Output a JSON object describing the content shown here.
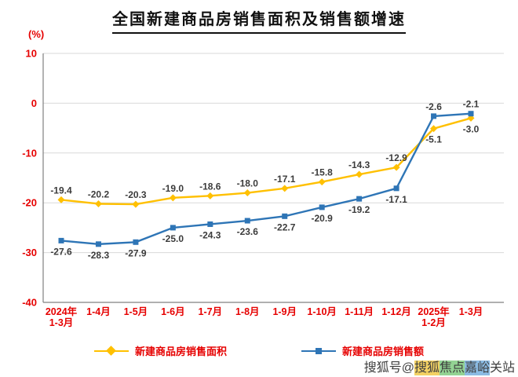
{
  "chart_data": {
    "type": "line",
    "title": "全国新建商品房销售面积及销售额增速",
    "ylabel": "(%)",
    "xlabel": "",
    "ylim": [
      -40,
      10
    ],
    "yticks": [
      10,
      0,
      -10,
      -20,
      -30,
      -40
    ],
    "grid": true,
    "legend_position": "bottom",
    "categories": [
      "2024年\n1-3月",
      "1-4月",
      "1-5月",
      "1-6月",
      "1-7月",
      "1-8月",
      "1-9月",
      "1-10月",
      "1-11月",
      "1-12月",
      "2025年\n1-2月",
      "1-3月"
    ],
    "series": [
      {
        "name": "新建商品房销售面积",
        "color": "#FFC000",
        "marker": "diamond",
        "values": [
          -19.4,
          -20.2,
          -20.3,
          -19.0,
          -18.6,
          -18.0,
          -17.1,
          -15.8,
          -14.3,
          -12.9,
          -5.1,
          -3.0
        ],
        "label_positions": [
          "above",
          "above",
          "above",
          "above",
          "above",
          "above",
          "above",
          "above",
          "above",
          "above",
          "below",
          "below"
        ]
      },
      {
        "name": "新建商品房销售额",
        "color": "#2E75B6",
        "marker": "square",
        "values": [
          -27.6,
          -28.3,
          -27.9,
          -25.0,
          -24.3,
          -23.6,
          -22.7,
          -20.9,
          -19.2,
          -17.1,
          -2.6,
          -2.1
        ],
        "label_positions": [
          "below",
          "below",
          "below",
          "below",
          "below",
          "below",
          "below",
          "below",
          "below",
          "below",
          "above",
          "above"
        ]
      }
    ]
  },
  "colors": {
    "tick_label": "#e60000",
    "data_label": "#3b3b3b",
    "grid": "#d9d9d9",
    "axis": "#808080"
  },
  "watermark": {
    "segments": [
      {
        "text": "搜狐号@",
        "bg": "transparent"
      },
      {
        "text": "搜狐",
        "bg": "rgba(240,198,60,0.8)"
      },
      {
        "text": "焦点",
        "bg": "rgba(120,200,120,0.8)"
      },
      {
        "text": "嘉峪",
        "bg": "rgba(110,170,220,0.8)"
      },
      {
        "text": "关站",
        "bg": "transparent"
      }
    ]
  }
}
